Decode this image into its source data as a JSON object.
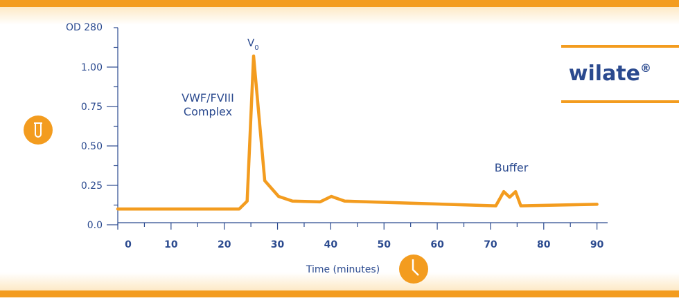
{
  "chart_data": {
    "type": "line",
    "ylabel": "OD 280",
    "xlabel": "Time (minutes)",
    "ylim": [
      0,
      1.25
    ],
    "yticks": [
      {
        "value": 0,
        "label": "0.0"
      },
      0.25,
      {
        "value": 0.5,
        "label": "0.50"
      },
      0.75,
      {
        "value": 1,
        "label": "1.00"
      }
    ],
    "yminorticks": [
      0.125,
      0.375,
      0.625,
      0.875,
      1.125,
      1.25
    ],
    "xlim": [
      0,
      92
    ],
    "xticks": [
      0,
      10,
      20,
      30,
      40,
      50,
      60,
      70,
      80,
      90
    ],
    "xminorticks": [
      5,
      15,
      25,
      35,
      45,
      55,
      65,
      75,
      85
    ],
    "color": "#f39c1f",
    "x": [
      0,
      22.8,
      24.3,
      25.5,
      27.6,
      30.2,
      32.8,
      38,
      40.1,
      42.6,
      56,
      71,
      72.5,
      73.6,
      74.7,
      75.7,
      90
    ],
    "values": [
      0.1,
      0.1,
      0.15,
      1.07,
      0.28,
      0.18,
      0.15,
      0.145,
      0.18,
      0.15,
      0.136,
      0.12,
      0.21,
      0.175,
      0.21,
      0.12,
      0.13
    ],
    "annotations": {
      "peak_main": "V",
      "peak_sub": "0",
      "complex_1": "VWF/FVIII",
      "complex_2": "Complex",
      "buffer": "Buffer"
    },
    "brand": {
      "name": "wilate",
      "mark": "®"
    }
  }
}
